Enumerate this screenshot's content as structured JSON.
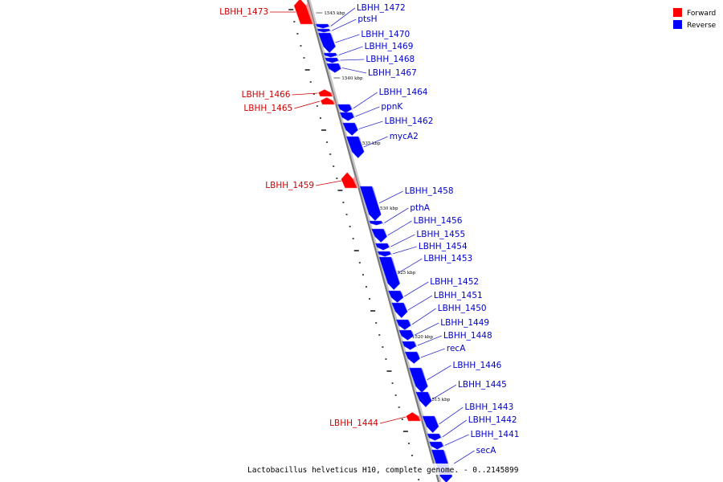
{
  "colors": {
    "forward": "#ff0000",
    "reverse": "#0000ff",
    "forward_label": "#cc0000",
    "reverse_label": "#0000cc"
  },
  "legend": {
    "forward": "Forward",
    "reverse": "Reverse"
  },
  "caption": "Lactobacillus helveticus H10, complete genome. - 0..2145899",
  "scale_ticks": [
    "1545 kbp",
    "1540 kbp",
    "1535 kbp",
    "1530 kbp",
    "1525 kbp",
    "1520 kbp",
    "1515 kbp"
  ],
  "genes": [
    {
      "name": "LBHH_1473",
      "strand": "forward"
    },
    {
      "name": "LBHH_1472",
      "strand": "reverse"
    },
    {
      "name": "ptsH",
      "strand": "reverse"
    },
    {
      "name": "LBHH_1470",
      "strand": "reverse"
    },
    {
      "name": "LBHH_1469",
      "strand": "reverse"
    },
    {
      "name": "LBHH_1468",
      "strand": "reverse"
    },
    {
      "name": "LBHH_1467",
      "strand": "reverse"
    },
    {
      "name": "LBHH_1466",
      "strand": "forward"
    },
    {
      "name": "LBHH_1465",
      "strand": "forward"
    },
    {
      "name": "LBHH_1464",
      "strand": "reverse"
    },
    {
      "name": "ppnK",
      "strand": "reverse"
    },
    {
      "name": "LBHH_1462",
      "strand": "reverse"
    },
    {
      "name": "mycA2",
      "strand": "reverse"
    },
    {
      "name": "LBHH_1459",
      "strand": "forward"
    },
    {
      "name": "LBHH_1458",
      "strand": "reverse"
    },
    {
      "name": "pthA",
      "strand": "reverse"
    },
    {
      "name": "LBHH_1456",
      "strand": "reverse"
    },
    {
      "name": "LBHH_1455",
      "strand": "reverse"
    },
    {
      "name": "LBHH_1454",
      "strand": "reverse"
    },
    {
      "name": "LBHH_1453",
      "strand": "reverse"
    },
    {
      "name": "LBHH_1452",
      "strand": "reverse"
    },
    {
      "name": "LBHH_1451",
      "strand": "reverse"
    },
    {
      "name": "LBHH_1450",
      "strand": "reverse"
    },
    {
      "name": "LBHH_1449",
      "strand": "reverse"
    },
    {
      "name": "LBHH_1448",
      "strand": "reverse"
    },
    {
      "name": "recA",
      "strand": "reverse"
    },
    {
      "name": "LBHH_1446",
      "strand": "reverse"
    },
    {
      "name": "LBHH_1445",
      "strand": "reverse"
    },
    {
      "name": "LBHH_1444",
      "strand": "forward"
    },
    {
      "name": "LBHH_1443",
      "strand": "reverse"
    },
    {
      "name": "LBHH_1442",
      "strand": "reverse"
    },
    {
      "name": "LBHH_1441",
      "strand": "reverse"
    },
    {
      "name": "secA",
      "strand": "reverse"
    }
  ]
}
